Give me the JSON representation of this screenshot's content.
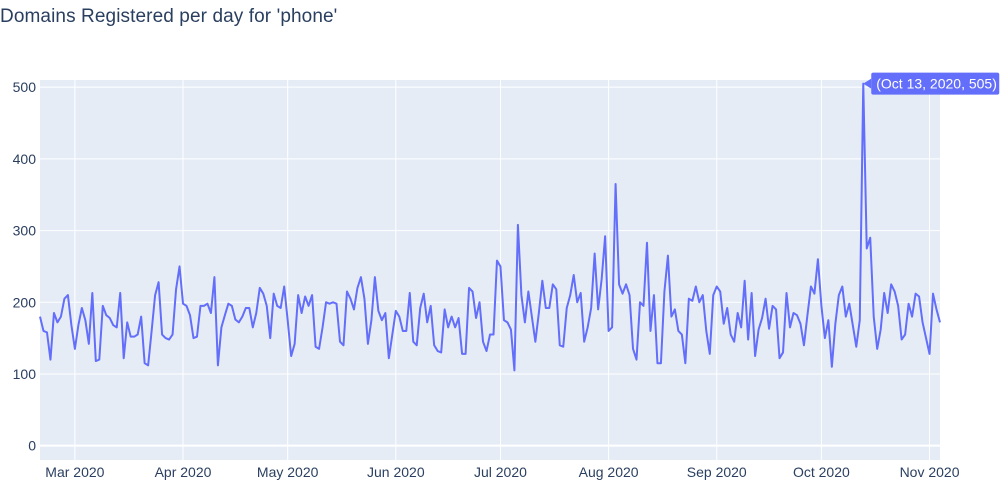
{
  "chart_data": {
    "type": "line",
    "title": "Domains Registered per day for 'phone'",
    "xlabel": "",
    "ylabel": "",
    "x_range": [
      "2020-02-20",
      "2020-11-04"
    ],
    "ylim": [
      -20,
      510
    ],
    "y_ticks": [
      0,
      100,
      200,
      300,
      400,
      500
    ],
    "x_ticks": [
      {
        "date": "2020-03-01",
        "label": "Mar 2020"
      },
      {
        "date": "2020-04-01",
        "label": "Apr 2020"
      },
      {
        "date": "2020-05-01",
        "label": "May 2020"
      },
      {
        "date": "2020-06-01",
        "label": "Jun 2020"
      },
      {
        "date": "2020-07-01",
        "label": "Jul 2020"
      },
      {
        "date": "2020-08-01",
        "label": "Aug 2020"
      },
      {
        "date": "2020-09-01",
        "label": "Sep 2020"
      },
      {
        "date": "2020-10-01",
        "label": "Oct 2020"
      },
      {
        "date": "2020-11-01",
        "label": "Nov 2020"
      }
    ],
    "grid": true,
    "line_color": "#636efa",
    "background_color": "#e5ecf6",
    "hover": {
      "date": "2020-10-13",
      "label": "(Oct 13, 2020, 505)"
    },
    "series": [
      {
        "start_date": "2020-02-20",
        "values": [
          180,
          160,
          158,
          120,
          185,
          172,
          180,
          205,
          210,
          168,
          135,
          168,
          192,
          175,
          142,
          213,
          118,
          120,
          195,
          182,
          178,
          168,
          165,
          213,
          122,
          172,
          152,
          152,
          155,
          180,
          115,
          112,
          160,
          210,
          228,
          155,
          150,
          148,
          155,
          218,
          250,
          198,
          195,
          182,
          150,
          152,
          195,
          195,
          198,
          185,
          235,
          112,
          165,
          182,
          198,
          195,
          176,
          172,
          180,
          192,
          192,
          165,
          185,
          220,
          212,
          195,
          150,
          212,
          195,
          192,
          222,
          175,
          125,
          142,
          210,
          185,
          208,
          195,
          210,
          138,
          135,
          165,
          200,
          198,
          200,
          198,
          145,
          140,
          215,
          205,
          190,
          220,
          235,
          205,
          142,
          175,
          235,
          188,
          175,
          185,
          122,
          155,
          188,
          180,
          160,
          160,
          213,
          145,
          140,
          192,
          212,
          172,
          195,
          140,
          132,
          130,
          190,
          165,
          180,
          165,
          178,
          128,
          128,
          220,
          215,
          178,
          200,
          145,
          132,
          155,
          155,
          258,
          250,
          175,
          172,
          162,
          105,
          308,
          210,
          172,
          215,
          180,
          145,
          185,
          230,
          192,
          192,
          225,
          218,
          140,
          138,
          192,
          210,
          238,
          200,
          213,
          145,
          165,
          192,
          268,
          190,
          232,
          292,
          160,
          165,
          365,
          225,
          212,
          225,
          210,
          135,
          120,
          200,
          195,
          283,
          160,
          210,
          115,
          115,
          215,
          265,
          180,
          190,
          160,
          155,
          115,
          205,
          202,
          222,
          200,
          210,
          160,
          128,
          210,
          222,
          215,
          170,
          192,
          155,
          145,
          185,
          165,
          230,
          148,
          213,
          125,
          162,
          178,
          205,
          163,
          195,
          190,
          122,
          130,
          213,
          165,
          185,
          182,
          170,
          140,
          182,
          222,
          212,
          260,
          195,
          150,
          175,
          110,
          170,
          210,
          222,
          180,
          198,
          168,
          138,
          175,
          505,
          275,
          290,
          180,
          135,
          162,
          213,
          185,
          225,
          215,
          195,
          148,
          155,
          198,
          180,
          212,
          208,
          172,
          150,
          128,
          212,
          190,
          172
        ]
      }
    ]
  }
}
